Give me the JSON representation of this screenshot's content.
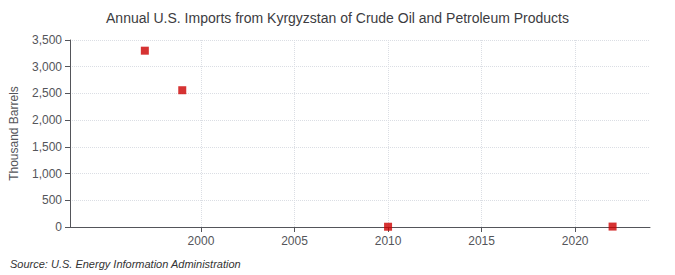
{
  "chart_data": {
    "type": "scatter",
    "title": "Annual U.S. Imports from Kyrgyzstan of Crude Oil and Petroleum Products",
    "ylabel": "Thousand Barrels",
    "source": "Source: U.S. Energy Information Administration",
    "x": [
      1997,
      1999,
      2010,
      2022
    ],
    "values": [
      3300,
      2560,
      5,
      8
    ],
    "color": "#cc0000",
    "marker": "square",
    "xlim": [
      1993,
      2024
    ],
    "xticks": [
      2000,
      2005,
      2010,
      2015,
      2020
    ],
    "ylim": [
      0,
      3500
    ],
    "yticks": [
      0,
      500,
      {
        "value": 1000,
        "label": "1,000"
      },
      {
        "value": 1500,
        "label": "1,500"
      },
      {
        "value": 2000,
        "label": "2,000"
      },
      {
        "value": 2500,
        "label": "2,500"
      },
      {
        "value": 3000,
        "label": "3,000"
      },
      {
        "value": 3500,
        "label": "3,500"
      }
    ],
    "grid": true
  }
}
